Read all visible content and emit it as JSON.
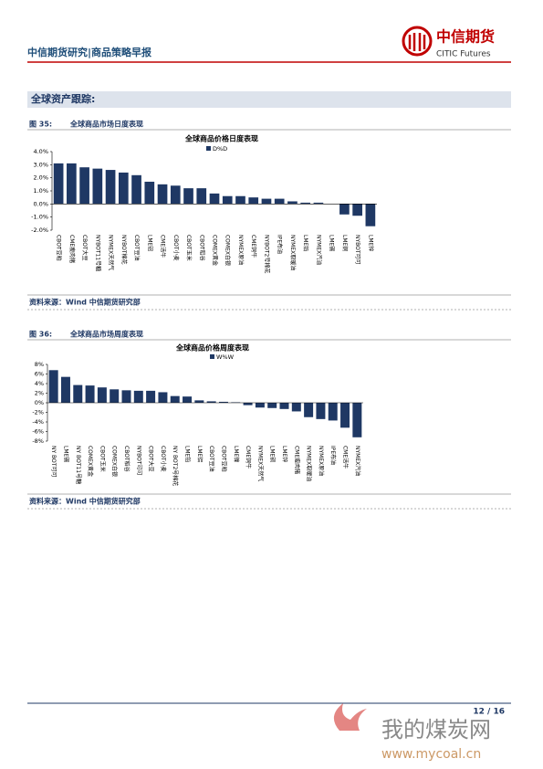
{
  "header": {
    "title": "中信期货研究|商品策略早报",
    "logo_cn": "中信期货",
    "logo_en": "CITIC Futures"
  },
  "section": {
    "title": "全球资产跟踪:"
  },
  "chart_data": [
    {
      "type": "bar",
      "figure_label": "图 35:",
      "caption": "全球商品市场日度表现",
      "title": "全球商品价格日度表现",
      "source": "资料来源：Wind 中信期货研究部",
      "series": [
        {
          "name": "D%D",
          "color": "#1f3864",
          "values": [
            3.1,
            3.1,
            2.8,
            2.7,
            2.6,
            2.4,
            2.2,
            1.7,
            1.5,
            1.4,
            1.2,
            1.2,
            0.8,
            0.6,
            0.6,
            0.5,
            0.4,
            0.4,
            0.2,
            0.1,
            0.1,
            0.0,
            -0.8,
            -0.9,
            -1.7
          ]
        }
      ],
      "categories": [
        "CBOT豆粕",
        "CME瘦肉猪",
        "CBOT大豆",
        "NYBOT11号糖",
        "NYMEX天然气",
        "NYBOT棉花",
        "CBOT豆油",
        "LME铝",
        "CME活牛",
        "CBOT小麦",
        "CBOT玉米",
        "CBOT稻谷",
        "COMEX黄金",
        "COMEX白银",
        "NYMEX原油",
        "CME饲牛",
        "NYBOT2号棉花",
        "IPE布油",
        "NYMEX取暖油",
        "LME铅",
        "NYMEX汽油",
        "LME锡",
        "LME铜",
        "NYBOT可可",
        "LME锌"
      ],
      "ylim": [
        -2.0,
        4.0
      ],
      "yticks": [
        {
          "value": -2.0,
          "label": "-2.0%"
        },
        {
          "value": -1.0,
          "label": "-1.0%"
        },
        {
          "value": 0.0,
          "label": "0.0%"
        },
        {
          "value": 1.0,
          "label": "1.0%"
        },
        {
          "value": 2.0,
          "label": "2.0%"
        },
        {
          "value": 3.0,
          "label": "3.0%"
        },
        {
          "value": 4.0,
          "label": "4.0%"
        }
      ]
    },
    {
      "type": "bar",
      "figure_label": "图 36:",
      "caption": "全球商品市场周度表现",
      "title": "全球商品价格周度表现",
      "source": "资料来源：Wind  中信期货研究部",
      "series": [
        {
          "name": "W%W",
          "color": "#1f3864",
          "values": [
            6.8,
            5.4,
            3.7,
            3.6,
            3.2,
            2.8,
            2.6,
            2.5,
            2.5,
            2.2,
            1.4,
            1.3,
            0.5,
            0.3,
            0.2,
            0.1,
            -0.5,
            -1.0,
            -1.1,
            -1.3,
            -1.8,
            -3.0,
            -3.4,
            -3.7,
            -5.2,
            -7.2
          ]
        }
      ],
      "categories": [
        "NY BOT可可",
        "LME锡",
        "NY BOT11号糖",
        "COMEX黄金",
        "CBOT玉米",
        "COMEX白银",
        "CBOT稻谷",
        "NYBOT可可",
        "CBOT大豆",
        "CBOT小麦",
        "NY BOT2号棉花",
        "LME铅",
        "LME铝",
        "CBOT豆油",
        "CBOT豆粕",
        "LME镍",
        "CME饲牛",
        "NYMEX天然气",
        "LME铜",
        "LME锌",
        "CME瘦肉猪",
        "NYMEX取暖油",
        "NYMEX原油",
        "IPE布油",
        "CME活牛",
        "NYMEX汽油"
      ],
      "ylim": [
        -8,
        8
      ],
      "yticks": [
        {
          "value": -8,
          "label": "-8%"
        },
        {
          "value": -6,
          "label": "-6%"
        },
        {
          "value": -4,
          "label": "-4%"
        },
        {
          "value": -2,
          "label": "-2%"
        },
        {
          "value": 0,
          "label": "0%"
        },
        {
          "value": 2,
          "label": "2%"
        },
        {
          "value": 4,
          "label": "4%"
        },
        {
          "value": 6,
          "label": "6%"
        },
        {
          "value": 8,
          "label": "8%"
        }
      ]
    }
  ],
  "footer": {
    "page": "12 / 16"
  },
  "watermark": {
    "cn": "我的煤炭网",
    "url": "www.mycoal.cn"
  }
}
